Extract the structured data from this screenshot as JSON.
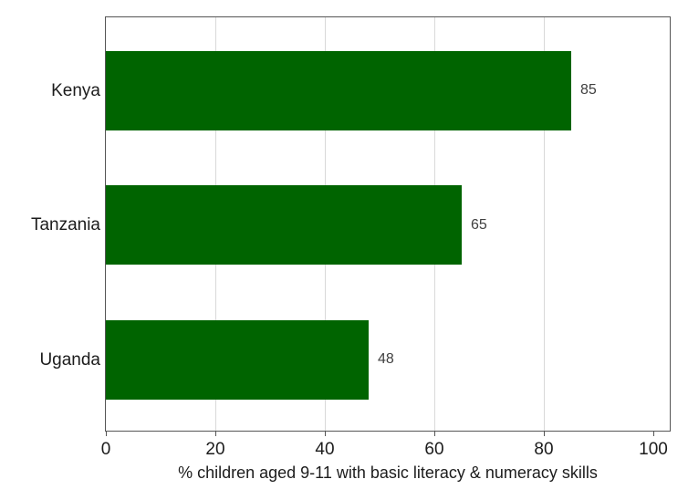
{
  "chart_data": {
    "type": "bar",
    "orientation": "horizontal",
    "title": "",
    "xlabel": "% children aged 9-11 with basic literacy & numeracy skills",
    "ylabel": "",
    "categories": [
      "Kenya",
      "Tanzania",
      "Uganda"
    ],
    "values": [
      85,
      65,
      48
    ],
    "xlim": [
      0,
      103
    ],
    "xticks": [
      0,
      20,
      40,
      60,
      80,
      100
    ],
    "gridlines": [
      20,
      40,
      60,
      80
    ],
    "grid": true,
    "legend": "none",
    "colors": {
      "bar": "#006400",
      "grid": "#d9d9d9",
      "frame": "#555555",
      "tick": "#555555",
      "text": "#1c1c1c",
      "value_label": "#404040",
      "background": "#ffffff"
    }
  }
}
